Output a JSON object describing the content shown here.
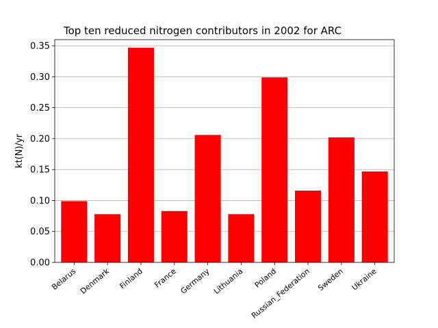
{
  "chart_data": {
    "type": "bar",
    "title": "Top ten reduced nitrogen contributors in 2002 for ARC",
    "xlabel": "",
    "ylabel": "kt(N)/yr",
    "categories": [
      "Belarus",
      "Denmark",
      "Finland",
      "France",
      "Germany",
      "Lithuania",
      "Poland",
      "Russian_Federation",
      "Sweden",
      "Ukraine"
    ],
    "values": [
      0.099,
      0.078,
      0.347,
      0.083,
      0.206,
      0.078,
      0.299,
      0.116,
      0.202,
      0.147
    ],
    "ylim": [
      0,
      0.36
    ],
    "yticks": [
      0.0,
      0.05,
      0.1,
      0.15,
      0.2,
      0.25,
      0.3,
      0.35
    ],
    "ytick_labels": [
      "0.00",
      "0.05",
      "0.10",
      "0.15",
      "0.20",
      "0.25",
      "0.30",
      "0.35"
    ],
    "grid": "y",
    "bar_color": "#ff0000",
    "grid_color": "#b0b0b0"
  }
}
